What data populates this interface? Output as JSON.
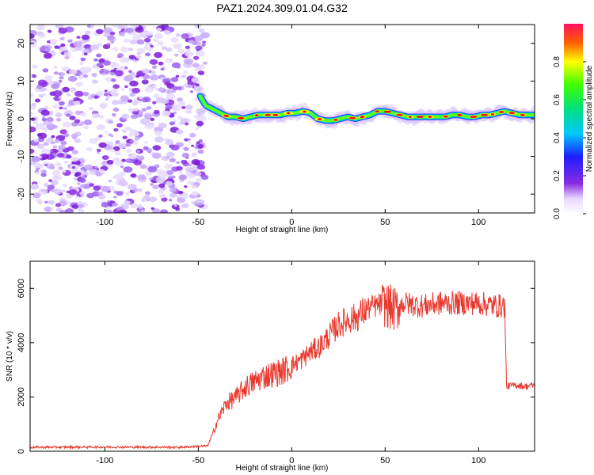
{
  "title": "PAZ1.2024.309.01.04.G32",
  "chart_data": [
    {
      "type": "heatmap",
      "xlabel": "Height of straight line (km)",
      "ylabel": "Frequency (Hz)",
      "xlim": [
        -140,
        130
      ],
      "ylim": [
        -25,
        25
      ],
      "x_ticks": [
        -100,
        -50,
        0,
        50,
        100
      ],
      "y_ticks": [
        -20,
        -10,
        0,
        10,
        20
      ],
      "noise_region_x": [
        -140,
        -46
      ],
      "ridge": {
        "x": [
          -49,
          -46,
          -42,
          -38,
          -34,
          -30,
          -26,
          -22,
          -18,
          -14,
          -10,
          -6,
          -2,
          2,
          6,
          10,
          14,
          18,
          22,
          26,
          30,
          34,
          38,
          42,
          46,
          50,
          54,
          58,
          62,
          66,
          70,
          74,
          78,
          82,
          86,
          90,
          94,
          98,
          102,
          106,
          110,
          114,
          118,
          122,
          126,
          130
        ],
        "frequency": [
          6,
          3.5,
          2.5,
          1.5,
          0.5,
          0.5,
          0,
          0.5,
          1,
          1,
          1,
          1,
          1.5,
          1.5,
          2,
          1.5,
          0,
          -0.5,
          -0.5,
          0,
          0.5,
          0,
          0.5,
          1,
          2,
          2,
          1.5,
          1,
          0.5,
          0.5,
          0.5,
          0.5,
          0.5,
          0.5,
          1,
          1,
          0.5,
          0.5,
          1,
          1,
          1.5,
          2,
          1.5,
          1,
          1,
          1
        ]
      },
      "colorbar": {
        "label": "Normalized spectral amplitude",
        "ticks": [
          0.0,
          0.2,
          0.4,
          0.6,
          0.8
        ],
        "range": [
          0,
          1
        ]
      }
    },
    {
      "type": "line",
      "xlabel": "Height of straight line (km)",
      "ylabel": "SNR (10 * v/v)",
      "xlim": [
        -140,
        130
      ],
      "ylim": [
        0,
        7000
      ],
      "x_ticks": [
        -100,
        -50,
        0,
        50,
        100
      ],
      "y_ticks": [
        0,
        2000,
        4000,
        6000
      ],
      "series": [
        {
          "color": "#e8392f",
          "x": [
            -140,
            -100,
            -60,
            -45,
            -42,
            -40,
            -38,
            -35,
            -30,
            -25,
            -20,
            -15,
            -10,
            -5,
            0,
            5,
            10,
            15,
            20,
            25,
            30,
            35,
            40,
            45,
            50,
            55,
            60,
            70,
            80,
            90,
            100,
            110,
            114,
            115,
            120,
            125,
            130
          ],
          "values": [
            150,
            160,
            150,
            200,
            700,
            1100,
            1400,
            1800,
            2000,
            2400,
            2600,
            2800,
            2900,
            3000,
            3200,
            3400,
            3700,
            3900,
            4300,
            4700,
            4900,
            5000,
            5300,
            5400,
            5500,
            5300,
            5500,
            5400,
            5500,
            5500,
            5500,
            5400,
            5400,
            2400,
            2450,
            2400,
            2450
          ]
        }
      ]
    }
  ],
  "colors": {
    "line": "#e8392f",
    "axis": "#000000",
    "noise": "#8a2be2"
  }
}
